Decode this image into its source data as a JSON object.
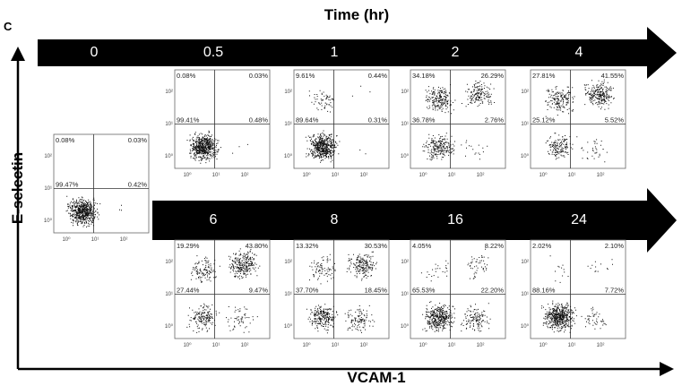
{
  "panel_label": "C",
  "title": "Time (hr)",
  "y_axis_label": "E-selectin",
  "x_axis_label": "VCAM-1",
  "axis_ticks": [
    "10⁰",
    "10¹",
    "10²"
  ],
  "plots": [
    {
      "time": "0",
      "quadrants": {
        "upper_left": "0.08%",
        "upper_right": "0.03%",
        "lower_left": "99.47%",
        "lower_right": "0.42%"
      }
    },
    {
      "time": "0.5",
      "quadrants": {
        "upper_left": "0.08%",
        "upper_right": "0.03%",
        "lower_left": "99.41%",
        "lower_right": "0.48%"
      }
    },
    {
      "time": "1",
      "quadrants": {
        "upper_left": "9.61%",
        "upper_right": "0.44%",
        "lower_left": "89.64%",
        "lower_right": "0.31%"
      }
    },
    {
      "time": "2",
      "quadrants": {
        "upper_left": "34.18%",
        "upper_right": "26.29%",
        "lower_left": "36.78%",
        "lower_right": "2.76%"
      }
    },
    {
      "time": "4",
      "quadrants": {
        "upper_left": "27.81%",
        "upper_right": "41.55%",
        "lower_left": "25.12%",
        "lower_right": "5.52%"
      }
    },
    {
      "time": "6",
      "quadrants": {
        "upper_left": "19.29%",
        "upper_right": "43.80%",
        "lower_left": "27.44%",
        "lower_right": "9.47%"
      }
    },
    {
      "time": "8",
      "quadrants": {
        "upper_left": "13.32%",
        "upper_right": "30.53%",
        "lower_left": "37.70%",
        "lower_right": "18.45%"
      }
    },
    {
      "time": "16",
      "quadrants": {
        "upper_left": "4.05%",
        "upper_right": "8.22%",
        "lower_left": "65.53%",
        "lower_right": "22.20%"
      }
    },
    {
      "time": "24",
      "quadrants": {
        "upper_left": "2.02%",
        "upper_right": "2.10%",
        "lower_left": "88.16%",
        "lower_right": "7.72%"
      }
    }
  ]
}
